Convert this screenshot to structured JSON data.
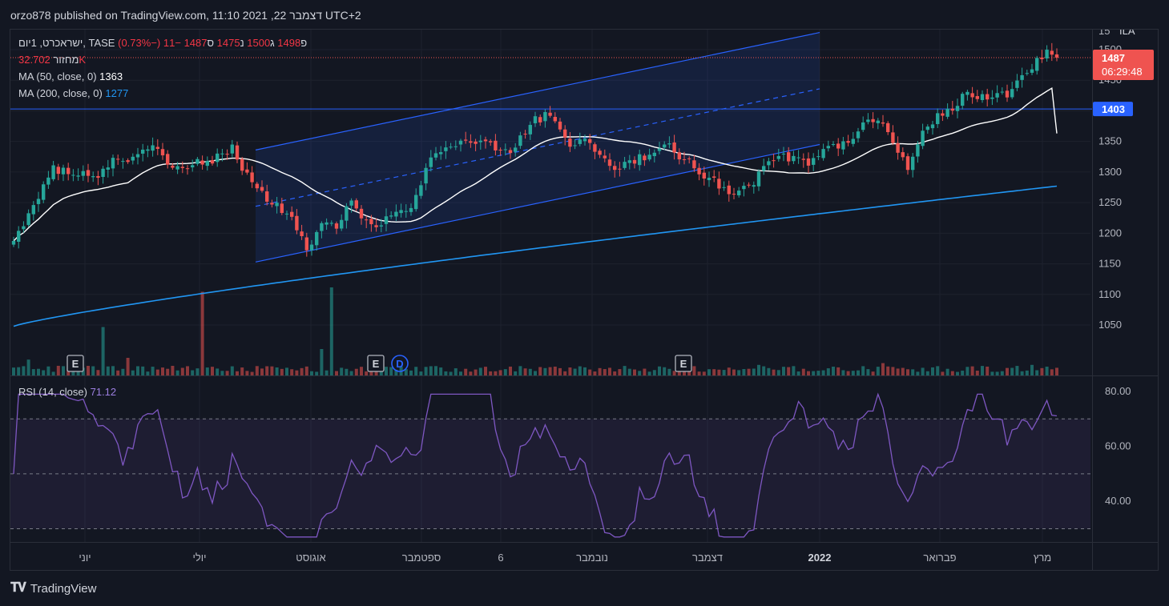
{
  "published": "orzo878 published on TradingView.com, 11:10 2021 ,22 דצמבר UTC+2",
  "legend": {
    "symbol": "ישראכרט, 1יום, TASE",
    "o_label": "פ",
    "o_val": "1498",
    "h_label": "ג",
    "h_val": "1500",
    "l_label": "נ",
    "l_val": "1475",
    "c_label": "ס",
    "c_val": "1487",
    "change": "−11 (−0.73%)",
    "volume_label": "מחזור",
    "volume_val": "32.702K",
    "ma50_label": "MA (50, close, 0)",
    "ma50_val": "1363",
    "ma200_label": "MA (200, close, 0)",
    "ma200_val": "1277",
    "rsi_label": "RSI (14, close)",
    "rsi_val": "71.12"
  },
  "price_axis": {
    "currency": "ILA",
    "ticks": [
      "15",
      "1500",
      "1450",
      "1350",
      "1300",
      "1250",
      "1200",
      "1150",
      "1100",
      "1050"
    ]
  },
  "price_badges": {
    "last": "1487",
    "countdown": "06:29:48",
    "level": "1403"
  },
  "rsi_axis": {
    "ticks": [
      "80.00",
      "60.00",
      "40.00"
    ]
  },
  "time_axis": {
    "ticks": [
      "יוני",
      "יולי",
      "אוגוסט",
      "ספטמבר",
      "6",
      "נובמבר",
      "דצמבר",
      "2022",
      "פברואר",
      "מרץ"
    ]
  },
  "event_markers": [
    "E",
    "E",
    "D",
    "E"
  ],
  "brand": "TradingView",
  "colors": {
    "up": "#26a69a",
    "down": "#ef5350",
    "ma50": "#ffffff",
    "ma200": "#2196f3",
    "channel": "#2962ff",
    "rsi": "#7e57c2"
  },
  "chart_data": {
    "type": "candlestick",
    "price_range": [
      1000,
      1530
    ],
    "rsi_range": [
      25,
      85
    ],
    "level_line": 1403,
    "channel": {
      "upper": [
        [
          0,
          1336
        ],
        [
          110,
          1528
        ]
      ],
      "lower": [
        [
          0,
          1153
        ],
        [
          110,
          1345
        ]
      ],
      "mid": [
        [
          0,
          1244
        ],
        [
          110,
          1436
        ]
      ]
    },
    "rsi_levels": [
      70,
      50,
      30
    ],
    "ma200_end": 1277,
    "ma50_end": 1363,
    "last_close": 1487,
    "anchors": [
      [
        0,
        1185
      ],
      [
        4,
        1245
      ],
      [
        8,
        1305
      ],
      [
        12,
        1300
      ],
      [
        16,
        1290
      ],
      [
        20,
        1318
      ],
      [
        24,
        1322
      ],
      [
        28,
        1345
      ],
      [
        32,
        1300
      ],
      [
        36,
        1315
      ],
      [
        40,
        1320
      ],
      [
        44,
        1340
      ],
      [
        48,
        1280
      ],
      [
        52,
        1250
      ],
      [
        56,
        1220
      ],
      [
        59,
        1175
      ],
      [
        62,
        1210
      ],
      [
        65,
        1215
      ],
      [
        68,
        1250
      ],
      [
        72,
        1210
      ],
      [
        76,
        1228
      ],
      [
        80,
        1240
      ],
      [
        84,
        1320
      ],
      [
        88,
        1345
      ],
      [
        92,
        1352
      ],
      [
        96,
        1345
      ],
      [
        100,
        1330
      ],
      [
        104,
        1380
      ],
      [
        108,
        1398
      ],
      [
        112,
        1345
      ],
      [
        116,
        1350
      ],
      [
        120,
        1305
      ],
      [
        124,
        1315
      ],
      [
        128,
        1330
      ],
      [
        132,
        1340
      ],
      [
        136,
        1315
      ],
      [
        140,
        1290
      ],
      [
        144,
        1265
      ],
      [
        148,
        1275
      ],
      [
        152,
        1315
      ],
      [
        156,
        1325
      ],
      [
        160,
        1315
      ],
      [
        164,
        1340
      ],
      [
        168,
        1345
      ],
      [
        172,
        1385
      ],
      [
        176,
        1370
      ],
      [
        180,
        1305
      ],
      [
        184,
        1380
      ],
      [
        188,
        1400
      ],
      [
        192,
        1430
      ],
      [
        196,
        1420
      ],
      [
        200,
        1428
      ],
      [
        204,
        1460
      ],
      [
        208,
        1497
      ],
      [
        210,
        1487
      ]
    ]
  }
}
